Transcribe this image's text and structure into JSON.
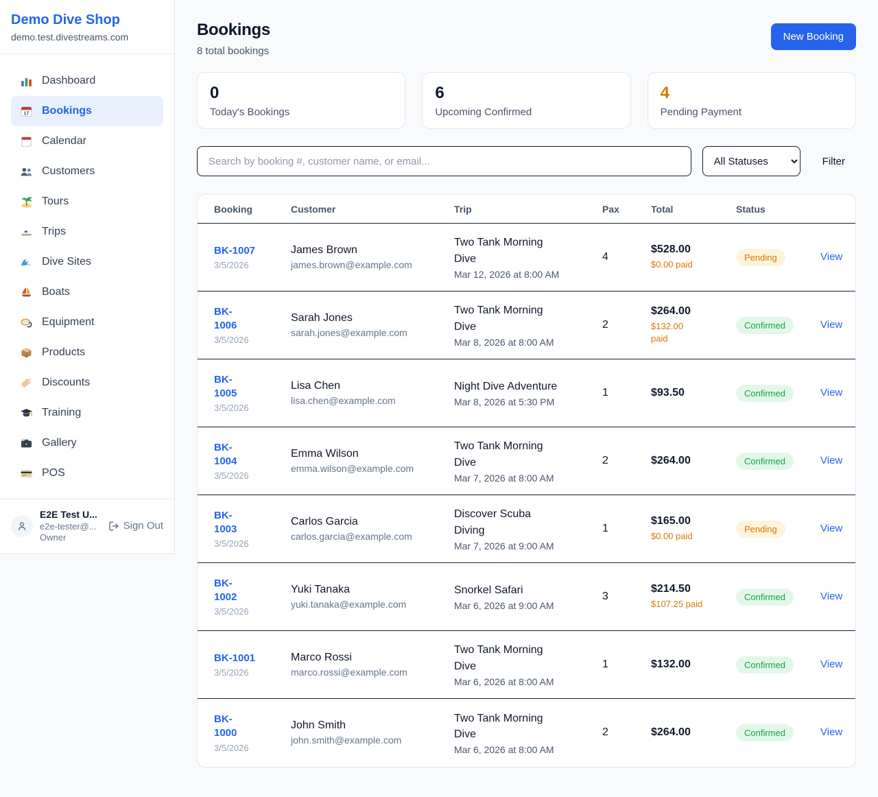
{
  "colors": {
    "accent": "#2563eb",
    "pending": "#d97706",
    "confirmed": "#16a34a",
    "dark": "#0f172a"
  },
  "sidebar": {
    "shop_name": "Demo Dive Shop",
    "shop_domain": "demo.test.divestreams.com",
    "items": [
      {
        "label": "Dashboard",
        "icon": "bar-chart-icon",
        "active": false
      },
      {
        "label": "Bookings",
        "icon": "calendar-17-icon",
        "active": true
      },
      {
        "label": "Calendar",
        "icon": "calendar-page-icon",
        "active": false
      },
      {
        "label": "Customers",
        "icon": "people-icon",
        "active": false
      },
      {
        "label": "Tours",
        "icon": "island-icon",
        "active": false
      },
      {
        "label": "Trips",
        "icon": "speedboat-icon",
        "active": false
      },
      {
        "label": "Dive Sites",
        "icon": "wave-icon",
        "active": false
      },
      {
        "label": "Boats",
        "icon": "sailboat-icon",
        "active": false
      },
      {
        "label": "Equipment",
        "icon": "scuba-mask-icon",
        "active": false
      },
      {
        "label": "Products",
        "icon": "package-icon",
        "active": false
      },
      {
        "label": "Discounts",
        "icon": "tag-icon",
        "active": false
      },
      {
        "label": "Training",
        "icon": "graduation-cap-icon",
        "active": false
      },
      {
        "label": "Gallery",
        "icon": "camera-icon",
        "active": false
      },
      {
        "label": "POS",
        "icon": "credit-card-icon",
        "active": false
      }
    ],
    "user": {
      "name": "E2E Test U...",
      "email": "e2e-tester@...",
      "role": "Owner",
      "sign_out_label": "Sign Out"
    }
  },
  "header": {
    "title": "Bookings",
    "subtitle": "8 total bookings",
    "new_booking_label": "New Booking"
  },
  "stats": [
    {
      "value": "0",
      "label": "Today's Bookings",
      "color": "#0f172a"
    },
    {
      "value": "6",
      "label": "Upcoming Confirmed",
      "color": "#0f172a"
    },
    {
      "value": "4",
      "label": "Pending Payment",
      "color": "#d97706"
    }
  ],
  "filters": {
    "search_placeholder": "Search by booking #, customer name, or email...",
    "status_selected": "All Statuses",
    "filter_label": "Filter"
  },
  "table": {
    "columns": [
      "Booking",
      "Customer",
      "Trip",
      "Pax",
      "Total",
      "Status"
    ],
    "view_label": "View",
    "rows": [
      {
        "number": "BK-1007",
        "number_wrap": false,
        "date": "3/5/2026",
        "customer": "James Brown",
        "email": "james.brown@example.com",
        "trip": "Two Tank Morning Dive",
        "trip_datetime": "Mar 12, 2026 at 8:00 AM",
        "pax": "4",
        "total": "$528.00",
        "paid": "$0.00 paid",
        "paid_wrap": false,
        "status": "Pending"
      },
      {
        "number": "BK-1006",
        "number_wrap": true,
        "date": "3/5/2026",
        "customer": "Sarah Jones",
        "email": "sarah.jones@example.com",
        "trip": "Two Tank Morning Dive",
        "trip_datetime": "Mar 8, 2026 at 8:00 AM",
        "pax": "2",
        "total": "$264.00",
        "paid": "$132.00 paid",
        "paid_wrap": true,
        "status": "Confirmed"
      },
      {
        "number": "BK-1005",
        "number_wrap": true,
        "date": "3/5/2026",
        "customer": "Lisa Chen",
        "email": "lisa.chen@example.com",
        "trip": "Night Dive Adventure",
        "trip_datetime": "Mar 8, 2026 at 5:30 PM",
        "pax": "1",
        "total": "$93.50",
        "paid": "",
        "paid_wrap": false,
        "status": "Confirmed"
      },
      {
        "number": "BK-1004",
        "number_wrap": true,
        "date": "3/5/2026",
        "customer": "Emma Wilson",
        "email": "emma.wilson@example.com",
        "trip": "Two Tank Morning Dive",
        "trip_datetime": "Mar 7, 2026 at 8:00 AM",
        "pax": "2",
        "total": "$264.00",
        "paid": "",
        "paid_wrap": false,
        "status": "Confirmed"
      },
      {
        "number": "BK-1003",
        "number_wrap": true,
        "date": "3/5/2026",
        "customer": "Carlos Garcia",
        "email": "carlos.garcia@example.com",
        "trip": "Discover Scuba Diving",
        "trip_datetime": "Mar 7, 2026 at 9:00 AM",
        "pax": "1",
        "total": "$165.00",
        "paid": "$0.00 paid",
        "paid_wrap": false,
        "status": "Pending"
      },
      {
        "number": "BK-1002",
        "number_wrap": true,
        "date": "3/5/2026",
        "customer": "Yuki Tanaka",
        "email": "yuki.tanaka@example.com",
        "trip": "Snorkel Safari",
        "trip_datetime": "Mar 6, 2026 at 9:00 AM",
        "pax": "3",
        "total": "$214.50",
        "paid": "$107.25 paid",
        "paid_wrap": false,
        "status": "Confirmed"
      },
      {
        "number": "BK-1001",
        "number_wrap": false,
        "date": "3/5/2026",
        "customer": "Marco Rossi",
        "email": "marco.rossi@example.com",
        "trip": "Two Tank Morning Dive",
        "trip_datetime": "Mar 6, 2026 at 8:00 AM",
        "pax": "1",
        "total": "$132.00",
        "paid": "",
        "paid_wrap": false,
        "status": "Confirmed"
      },
      {
        "number": "BK-1000",
        "number_wrap": true,
        "date": "3/5/2026",
        "customer": "John Smith",
        "email": "john.smith@example.com",
        "trip": "Two Tank Morning Dive",
        "trip_datetime": "Mar 6, 2026 at 8:00 AM",
        "pax": "2",
        "total": "$264.00",
        "paid": "",
        "paid_wrap": false,
        "status": "Confirmed"
      }
    ]
  }
}
